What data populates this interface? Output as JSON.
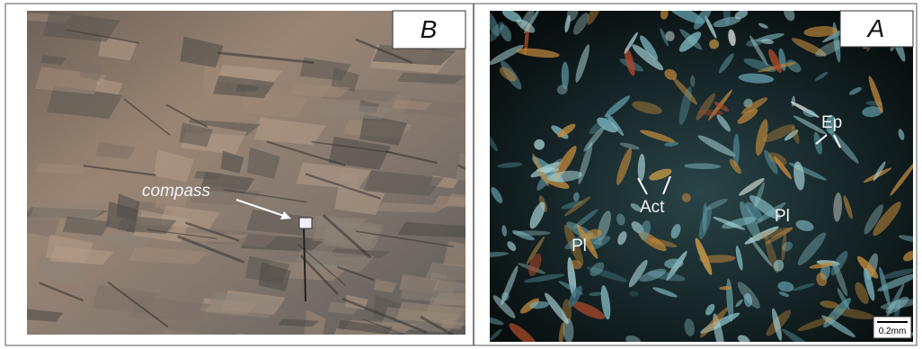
{
  "panels": [
    {
      "label": "B",
      "annotations": [
        "compass"
      ]
    },
    {
      "label": "A",
      "annotations": [
        "Ep",
        "Act",
        "Pl",
        "Pl"
      ],
      "scale_bar": "0.2mm"
    }
  ]
}
